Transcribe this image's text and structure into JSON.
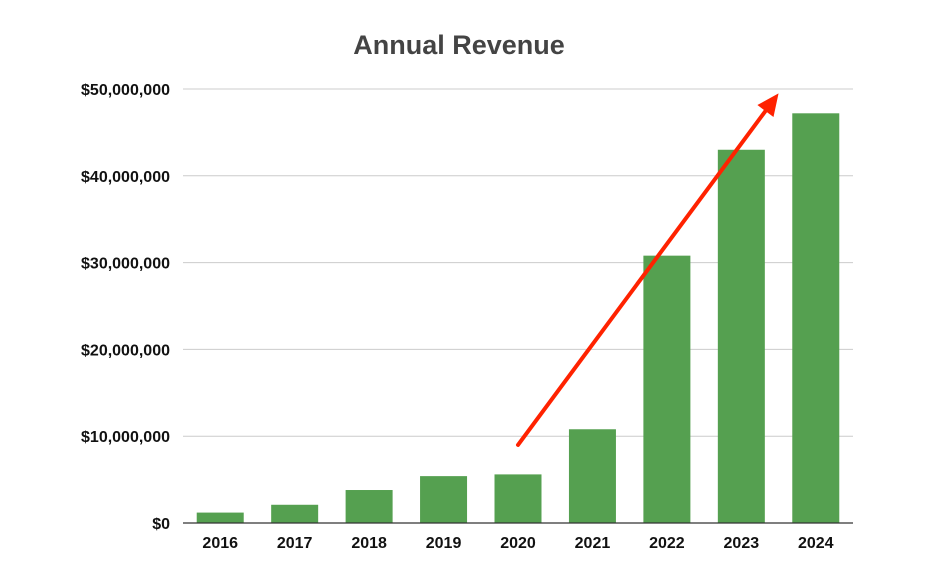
{
  "chart_data": {
    "type": "bar",
    "title": "Annual Revenue",
    "xlabel": "",
    "ylabel": "",
    "categories": [
      "2016",
      "2017",
      "2018",
      "2019",
      "2020",
      "2021",
      "2022",
      "2023",
      "2024"
    ],
    "series": [
      {
        "values": [
          1200000,
          2100000,
          3800000,
          5400000,
          5600000,
          10800000,
          30800000,
          43000000,
          47200000
        ]
      }
    ],
    "ylim": [
      0,
      50000000
    ],
    "y_ticks": [
      0,
      10000000,
      20000000,
      30000000,
      40000000,
      50000000
    ],
    "y_tick_labels": [
      "$0",
      "$10,000,000",
      "$20,000,000",
      "$30,000,000",
      "$40,000,000",
      "$50,000,000"
    ],
    "grid": "horizontal",
    "legend": "none",
    "bar_color": "#55a050",
    "annotation": {
      "type": "arrow",
      "color": "#ff2200",
      "from": {
        "x": "2020",
        "y": 9000000
      },
      "to": {
        "x": "2023.5",
        "y": 49500000
      }
    }
  }
}
